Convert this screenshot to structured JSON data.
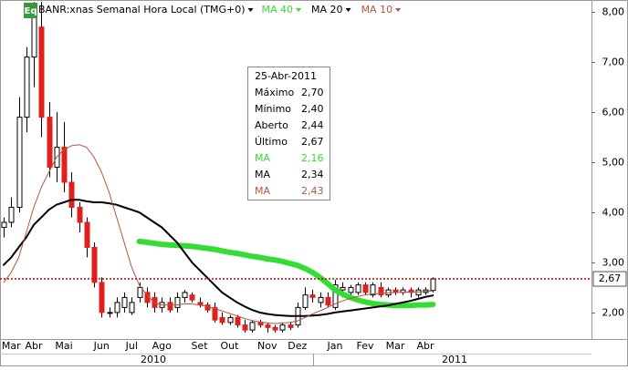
{
  "chart_data": {
    "type": "candlestick",
    "title": "BANR:xnas Semanal Hora Local (TMG+0)",
    "badge": "Eq",
    "categories": [
      null,
      "Mar",
      null,
      null,
      "Abr",
      null,
      null,
      null,
      "Mai",
      null,
      null,
      null,
      null,
      "Jun",
      null,
      null,
      null,
      "Jul",
      null,
      null,
      null,
      "Ago",
      null,
      null,
      null,
      null,
      "Set",
      null,
      null,
      null,
      "Out",
      null,
      null,
      null,
      null,
      "Nov",
      null,
      null,
      null,
      "Dez",
      null,
      null,
      null,
      null,
      "Jan",
      null,
      null,
      null,
      "Fev",
      null,
      null,
      null,
      "Mar",
      null,
      null,
      null,
      "Abr",
      null
    ],
    "years": [
      "2010",
      "2011"
    ],
    "open": [
      3.7,
      3.8,
      4.1,
      5.9,
      7.1,
      7.7,
      5.9,
      4.9,
      5.3,
      4.6,
      4.1,
      3.8,
      3.3,
      2.6,
      2.0,
      2.0,
      2.1,
      2.0,
      2.3,
      2.4,
      2.3,
      2.1,
      2.2,
      2.1,
      2.3,
      2.35,
      2.2,
      2.15,
      2.1,
      1.9,
      1.8,
      1.9,
      1.75,
      1.65,
      1.8,
      1.75,
      1.7,
      1.65,
      1.75,
      1.75,
      2.1,
      2.35,
      2.2,
      2.3,
      2.1,
      2.45,
      2.4,
      2.4,
      2.55,
      2.35,
      2.5,
      2.35,
      2.45,
      2.4,
      2.45,
      2.35,
      2.4,
      2.44
    ],
    "high": [
      3.9,
      4.3,
      6.3,
      7.3,
      8.2,
      8.2,
      6.2,
      6.0,
      5.8,
      4.8,
      4.2,
      3.9,
      3.4,
      2.7,
      2.1,
      2.3,
      2.4,
      2.3,
      2.6,
      2.5,
      2.4,
      2.3,
      2.3,
      2.4,
      2.45,
      2.4,
      2.3,
      2.2,
      2.2,
      2.0,
      1.95,
      1.95,
      1.85,
      1.85,
      1.85,
      1.8,
      1.75,
      1.8,
      1.8,
      2.2,
      2.5,
      2.45,
      2.4,
      2.4,
      2.65,
      2.6,
      2.55,
      2.6,
      2.6,
      2.6,
      2.6,
      2.5,
      2.5,
      2.5,
      2.5,
      2.5,
      2.5,
      2.7
    ],
    "low": [
      3.5,
      3.7,
      4.0,
      5.6,
      6.5,
      5.5,
      4.7,
      4.6,
      4.4,
      3.9,
      3.6,
      3.1,
      2.5,
      1.9,
      1.9,
      1.9,
      2.0,
      1.95,
      2.2,
      2.1,
      2.0,
      2.0,
      2.0,
      2.0,
      2.2,
      2.2,
      2.1,
      2.0,
      1.8,
      1.75,
      1.75,
      1.7,
      1.6,
      1.6,
      1.7,
      1.6,
      1.6,
      1.6,
      1.65,
      1.7,
      2.05,
      2.2,
      2.1,
      2.1,
      2.05,
      2.3,
      2.3,
      2.35,
      2.35,
      2.3,
      2.3,
      2.3,
      2.35,
      2.35,
      2.3,
      2.3,
      2.35,
      2.4
    ],
    "close": [
      3.8,
      4.1,
      5.9,
      7.1,
      7.9,
      5.9,
      4.9,
      5.3,
      4.6,
      4.1,
      3.8,
      3.3,
      2.6,
      2.0,
      2.0,
      2.2,
      2.3,
      2.2,
      2.5,
      2.2,
      2.1,
      2.2,
      2.05,
      2.3,
      2.4,
      2.25,
      2.15,
      2.05,
      1.85,
      1.8,
      1.9,
      1.75,
      1.65,
      1.8,
      1.75,
      1.7,
      1.65,
      1.75,
      1.7,
      2.1,
      2.35,
      2.3,
      2.3,
      2.15,
      2.55,
      2.5,
      2.5,
      2.55,
      2.4,
      2.55,
      2.35,
      2.45,
      2.4,
      2.45,
      2.4,
      2.45,
      2.45,
      2.67
    ],
    "up_color": "#ffffff",
    "down_color": "#e0201c",
    "moving_averages": [
      {
        "name": "MA 40",
        "color": "#33dd33",
        "width": 6,
        "values": [
          null,
          null,
          null,
          null,
          null,
          null,
          null,
          null,
          null,
          null,
          null,
          null,
          null,
          null,
          null,
          null,
          null,
          null,
          3.42,
          3.4,
          3.38,
          3.36,
          3.35,
          3.34,
          3.33,
          3.32,
          3.3,
          3.28,
          3.26,
          3.23,
          3.2,
          3.18,
          3.15,
          3.12,
          3.1,
          3.07,
          3.05,
          3.02,
          2.98,
          2.94,
          2.88,
          2.8,
          2.7,
          2.58,
          2.45,
          2.37,
          2.3,
          2.25,
          2.21,
          2.18,
          2.16,
          2.15,
          2.14,
          2.14,
          2.14,
          2.15,
          2.15,
          2.16
        ]
      },
      {
        "name": "MA 20",
        "color": "#000000",
        "width": 2,
        "values": [
          2.95,
          3.1,
          3.3,
          3.5,
          3.75,
          3.9,
          4.05,
          4.15,
          4.2,
          4.25,
          4.25,
          4.22,
          4.2,
          4.2,
          4.18,
          4.15,
          4.1,
          4.05,
          4.0,
          3.9,
          3.8,
          3.7,
          3.55,
          3.4,
          3.2,
          3.0,
          2.85,
          2.7,
          2.55,
          2.4,
          2.3,
          2.2,
          2.12,
          2.05,
          2.0,
          1.97,
          1.95,
          1.94,
          1.93,
          1.93,
          1.93,
          1.94,
          1.95,
          1.97,
          2.0,
          2.02,
          2.04,
          2.06,
          2.08,
          2.1,
          2.12,
          2.14,
          2.17,
          2.2,
          2.23,
          2.27,
          2.31,
          2.34
        ]
      },
      {
        "name": "MA 10",
        "color": "#b5533c",
        "width": 1,
        "values": [
          2.6,
          2.8,
          3.1,
          3.6,
          4.1,
          4.5,
          4.8,
          5.1,
          5.25,
          5.33,
          5.35,
          5.3,
          5.1,
          4.8,
          4.4,
          3.9,
          3.4,
          2.9,
          2.55,
          2.35,
          2.2,
          2.15,
          2.15,
          2.15,
          2.17,
          2.17,
          2.15,
          2.12,
          2.08,
          2.03,
          1.98,
          1.93,
          1.88,
          1.84,
          1.81,
          1.79,
          1.78,
          1.79,
          1.8,
          1.83,
          1.9,
          1.97,
          2.03,
          2.1,
          2.17,
          2.23,
          2.28,
          2.32,
          2.35,
          2.37,
          2.38,
          2.39,
          2.4,
          2.4,
          2.41,
          2.41,
          2.42,
          2.43
        ]
      }
    ],
    "last_price": {
      "value": 2.67,
      "label": "2,67"
    },
    "last_price_color": "#cc0000",
    "ylim": [
      1.47,
      8.24
    ],
    "yticks": [
      {
        "value": 2,
        "label": "2,00"
      },
      {
        "value": 3,
        "label": "3,00"
      },
      {
        "value": 4,
        "label": "4,00"
      },
      {
        "value": 5,
        "label": "5,00"
      },
      {
        "value": 6,
        "label": "6,00"
      },
      {
        "value": 7,
        "label": "7,00"
      },
      {
        "value": 8,
        "label": "8,00"
      }
    ]
  },
  "tooltip": {
    "date": "25-Abr-2011",
    "rows": [
      {
        "label": "Máximo",
        "value": "2,70",
        "color": "#000000"
      },
      {
        "label": "Mínimo",
        "value": "2,40",
        "color": "#000000"
      },
      {
        "label": "Aberto",
        "value": "2,44",
        "color": "#000000"
      },
      {
        "label": "Último",
        "value": "2,67",
        "color": "#000000"
      },
      {
        "label": "MA",
        "value": "2,16",
        "color": "#33dd33"
      },
      {
        "label": "MA",
        "value": "2,34",
        "color": "#000000"
      },
      {
        "label": "MA",
        "value": "2,43",
        "color": "#b5533c"
      }
    ]
  }
}
